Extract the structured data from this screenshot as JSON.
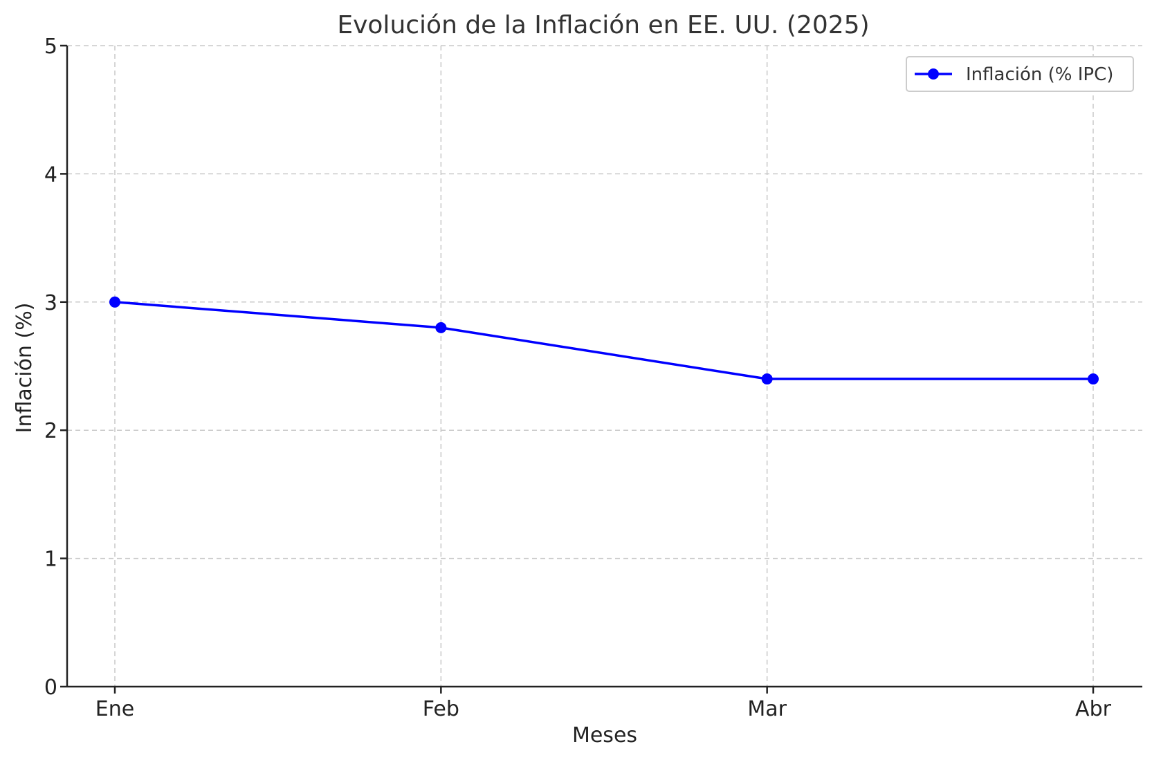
{
  "chart_data": {
    "type": "line",
    "title": "Evolución de la Inflación en EE. UU. (2025)",
    "xlabel": "Meses",
    "ylabel": "Inflación (%)",
    "categories": [
      "Ene",
      "Feb",
      "Mar",
      "Abr"
    ],
    "ylim": [
      0,
      5
    ],
    "yticks": [
      "0",
      "1",
      "2",
      "3",
      "4",
      "5"
    ],
    "grid": true,
    "legend_position": "top-right",
    "series": [
      {
        "name": "Inflación (% IPC)",
        "values": [
          3.0,
          2.8,
          2.4,
          2.4
        ],
        "color": "#0000ff",
        "marker": "circle"
      }
    ]
  }
}
